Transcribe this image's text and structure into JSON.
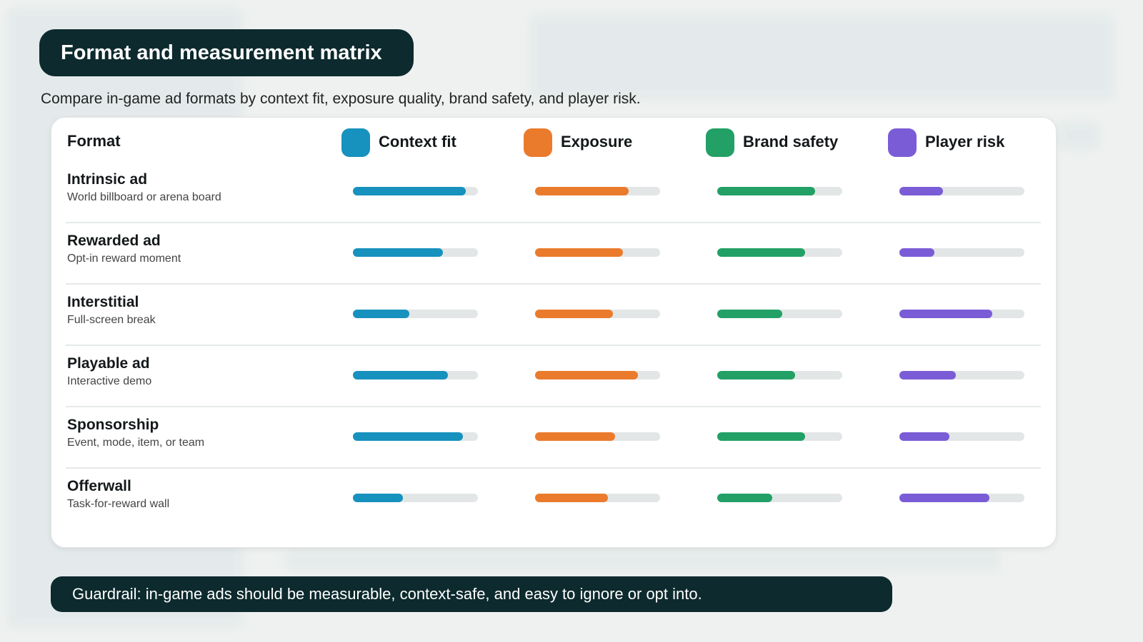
{
  "header": {
    "title": "Format and measurement matrix",
    "subtitle": "Compare in-game ad formats by context fit, exposure quality, brand safety, and player risk."
  },
  "matrix": {
    "row_heading": "Format",
    "scale": [
      0,
      100
    ],
    "columns": [
      {
        "name": "Context fit",
        "color": "#1791bd"
      },
      {
        "name": "Exposure",
        "color": "#ea7b2c"
      },
      {
        "name": "Brand safety",
        "color": "#22a066"
      },
      {
        "name": "Player risk",
        "color": "#7a5cd6"
      }
    ],
    "rows": [
      {
        "name": "Intrinsic ad",
        "description": "World billboard or arena board",
        "scores": [
          90,
          75,
          78,
          35
        ]
      },
      {
        "name": "Rewarded ad",
        "description": "Opt-in reward moment",
        "scores": [
          72,
          70,
          70,
          28
        ]
      },
      {
        "name": "Interstitial",
        "description": "Full-screen break",
        "scores": [
          45,
          62,
          52,
          74
        ]
      },
      {
        "name": "Playable ad",
        "description": "Interactive demo",
        "scores": [
          76,
          82,
          62,
          45
        ]
      },
      {
        "name": "Sponsorship",
        "description": "Event, mode, item, or team",
        "scores": [
          88,
          64,
          70,
          40
        ]
      },
      {
        "name": "Offerwall",
        "description": "Task-for-reward wall",
        "scores": [
          40,
          58,
          44,
          72
        ]
      }
    ]
  },
  "footer": {
    "text": "Guardrail: in-game ads should be measurable, context-safe, and easy to ignore or opt into."
  }
}
